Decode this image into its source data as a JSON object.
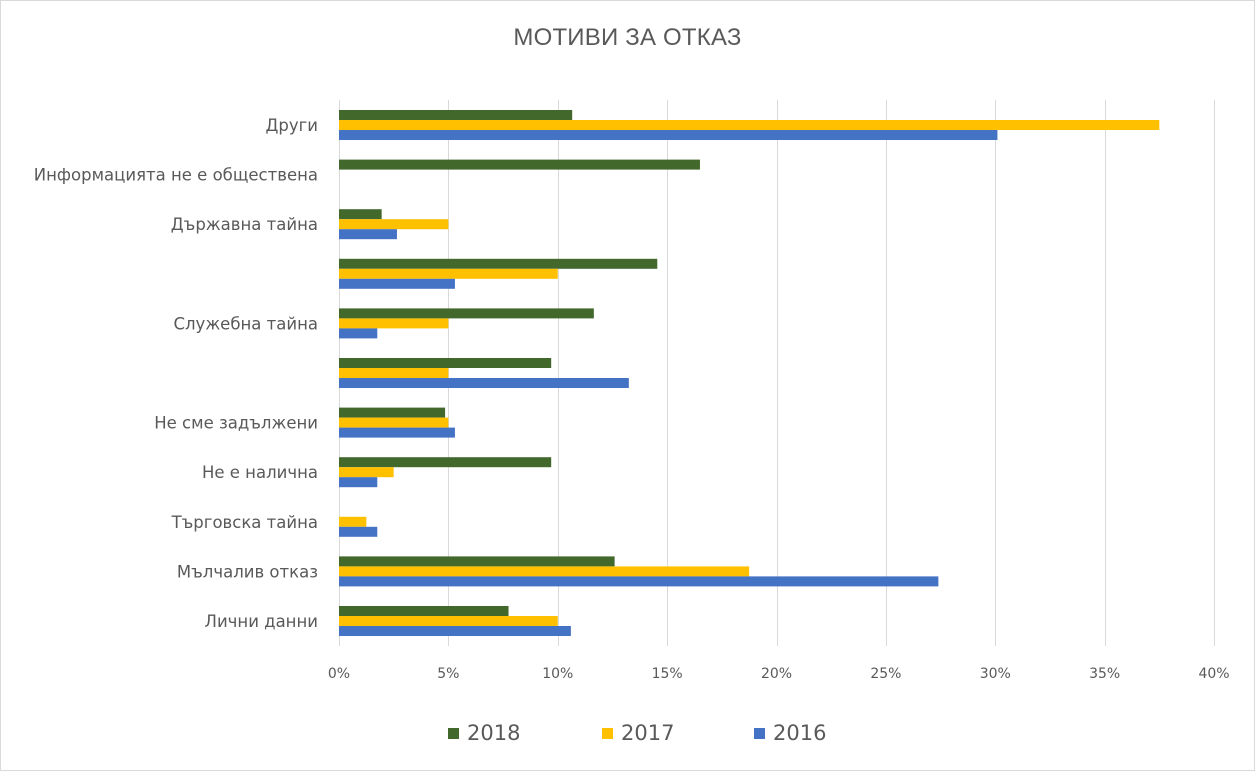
{
  "chart_data": {
    "type": "bar",
    "orientation": "horizontal",
    "title": "МОТИВИ ЗА ОТКАЗ",
    "xlabel": "",
    "ylabel": "",
    "xlim": [
      0,
      40
    ],
    "x_ticks": [
      "0%",
      "5%",
      "10%",
      "15%",
      "20%",
      "25%",
      "30%",
      "35%",
      "40%"
    ],
    "x_tick_values": [
      0,
      5,
      10,
      15,
      20,
      25,
      30,
      35,
      40
    ],
    "grid": "vertical",
    "legend_position": "bottom",
    "categories": [
      "Други",
      "Информацията не е обществена",
      "Държавна тайна ",
      "",
      "Служебна тайна ",
      "",
      "Не сме задължени",
      "Не е налична ",
      "Търговска тайна ",
      "Мълчалив отказ ",
      "Лични данни"
    ],
    "series": [
      {
        "name": "2018",
        "color": "#43682b",
        "values": [
          10.66,
          16.5,
          1.95,
          14.55,
          11.65,
          9.7,
          4.85,
          9.7,
          0,
          12.6,
          7.75
        ]
      },
      {
        "name": "2017",
        "color": "#ffc000",
        "values": [
          37.5,
          0,
          5.0,
          10.0,
          5.0,
          5.0,
          5.0,
          2.5,
          1.25,
          18.75,
          10.0
        ]
      },
      {
        "name": "2016",
        "color": "#4472c4",
        "values": [
          30.1,
          0,
          2.65,
          5.3,
          1.75,
          13.25,
          5.3,
          1.75,
          1.75,
          27.4,
          10.6
        ]
      }
    ],
    "units": "%"
  }
}
